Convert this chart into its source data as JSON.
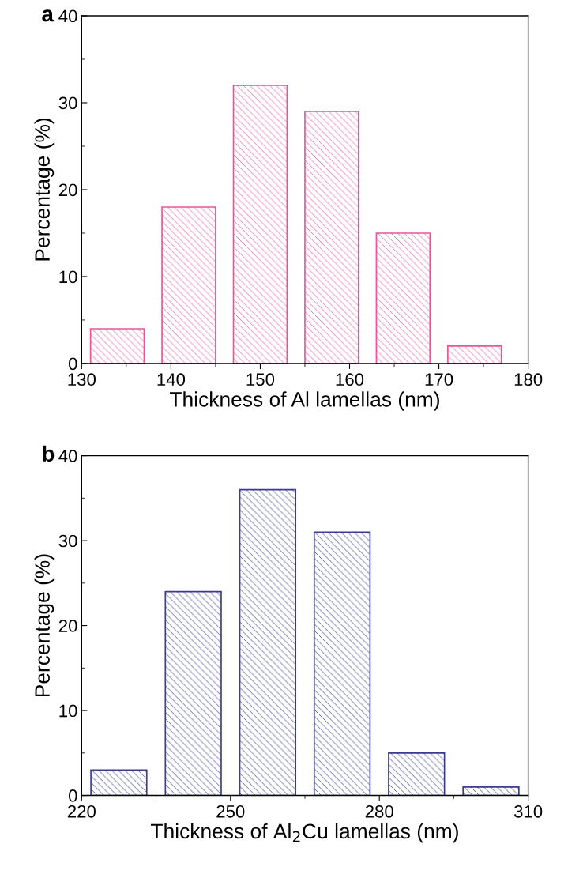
{
  "chart_data": [
    {
      "type": "bar",
      "title": "a",
      "xlabel": "Thickness of Al lamellas (nm)",
      "ylabel": "Percentage (%)",
      "x": [
        134,
        142,
        150,
        158,
        166,
        174
      ],
      "values": [
        4,
        18,
        32,
        29,
        15,
        2
      ],
      "color": "#e8559b",
      "xlim": [
        130,
        180
      ],
      "xticks": [
        130,
        140,
        150,
        160,
        170,
        180
      ],
      "ylim": [
        0,
        40
      ],
      "yticks": [
        0,
        10,
        20,
        30,
        40
      ],
      "grid": false
    },
    {
      "type": "bar",
      "title": "b",
      "xlabel": "Thickness of Al$_{2}$Cu lamellas (nm)",
      "ylabel": "Percentage (%)",
      "x": [
        227.5,
        242.5,
        257.5,
        272.5,
        287.5,
        302.5
      ],
      "values": [
        3,
        24,
        36,
        31,
        5,
        1
      ],
      "color": "#3b3b8c",
      "xlim": [
        220,
        310
      ],
      "xticks": [
        220,
        250,
        280,
        310
      ],
      "ylim": [
        0,
        40
      ],
      "yticks": [
        0,
        10,
        20,
        30,
        40
      ],
      "grid": false
    }
  ]
}
